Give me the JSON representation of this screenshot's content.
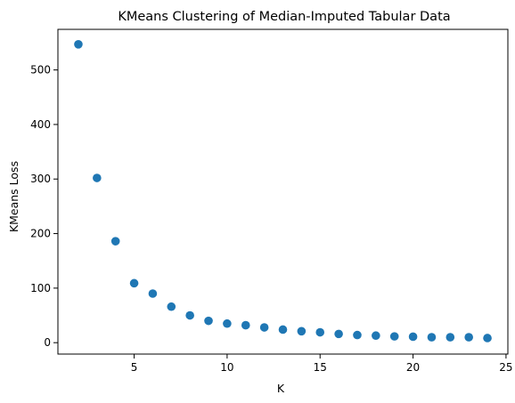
{
  "chart_data": {
    "type": "scatter",
    "title": "KMeans Clustering of Median-Imputed Tabular Data",
    "xlabel": "K",
    "ylabel": "KMeans Loss",
    "x": [
      2,
      3,
      4,
      5,
      6,
      7,
      8,
      9,
      10,
      11,
      12,
      13,
      14,
      15,
      16,
      17,
      18,
      19,
      20,
      21,
      22,
      23,
      24
    ],
    "y": [
      547,
      302,
      186,
      109,
      90,
      66,
      50,
      40,
      35,
      32,
      28,
      24,
      21,
      19,
      16,
      14,
      13,
      11.5,
      11,
      10,
      10,
      10,
      8.5
    ],
    "xlim": [
      0.9,
      25.1
    ],
    "ylim": [
      -20.9,
      574.4
    ],
    "xticks": [
      5,
      10,
      15,
      20,
      25
    ],
    "yticks": [
      0,
      100,
      200,
      300,
      400,
      500
    ],
    "grid": false,
    "colors": {
      "marker": "#1f77b4"
    }
  }
}
